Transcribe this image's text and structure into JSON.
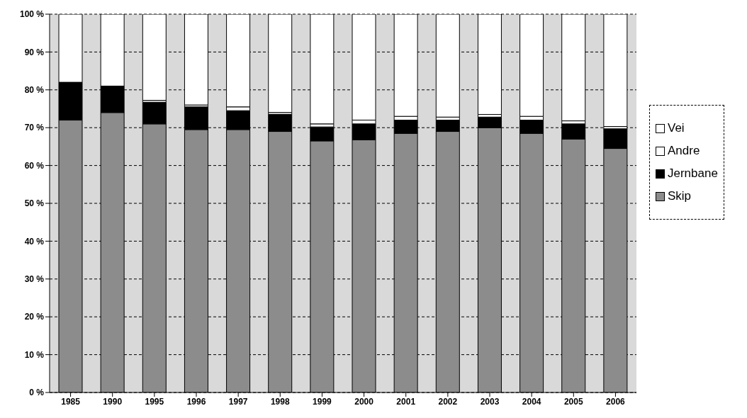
{
  "chart_data": {
    "type": "bar",
    "stacked": true,
    "categories": [
      "1985",
      "1990",
      "1995",
      "1996",
      "1997",
      "1998",
      "1999",
      "2000",
      "2001",
      "2002",
      "2003",
      "2004",
      "2005",
      "2006"
    ],
    "series": [
      {
        "name": "Skip",
        "color": "#8c8c8c",
        "values": [
          72,
          74,
          71,
          69.5,
          69.5,
          69,
          66.5,
          66.8,
          68.5,
          69,
          70,
          68.5,
          67,
          64.5
        ]
      },
      {
        "name": "Jernbane",
        "color": "#000000",
        "values": [
          10,
          7,
          5.7,
          6,
          5,
          4.5,
          3.7,
          4.2,
          3.5,
          3,
          2.8,
          3.5,
          4,
          5.2
        ]
      },
      {
        "name": "Andre",
        "color": "#ffffff",
        "values": [
          null,
          null,
          0.5,
          0.5,
          1,
          0.5,
          0.8,
          1,
          1,
          0.8,
          0.7,
          1,
          0.8,
          0.6
        ]
      },
      {
        "name": "Vei",
        "color": "#ffffff",
        "values": [
          18,
          19,
          22.8,
          24,
          24.5,
          26,
          29,
          28,
          27,
          27.2,
          26.5,
          27,
          28.2,
          29.7
        ]
      }
    ],
    "ylim": [
      0,
      100
    ],
    "yticks": [
      {
        "value": 0,
        "label": "0 %"
      },
      {
        "value": 10,
        "label": "10 %"
      },
      {
        "value": 20,
        "label": "20 %"
      },
      {
        "value": 30,
        "label": "30 %"
      },
      {
        "value": 40,
        "label": "40 %"
      },
      {
        "value": 50,
        "label": "50 %"
      },
      {
        "value": 60,
        "label": "60 %"
      },
      {
        "value": 70,
        "label": "70 %"
      },
      {
        "value": 80,
        "label": "80 %"
      },
      {
        "value": 90,
        "label": "90 %"
      },
      {
        "value": 100,
        "label": "100 %"
      }
    ],
    "grid": "y",
    "legend": "right"
  }
}
